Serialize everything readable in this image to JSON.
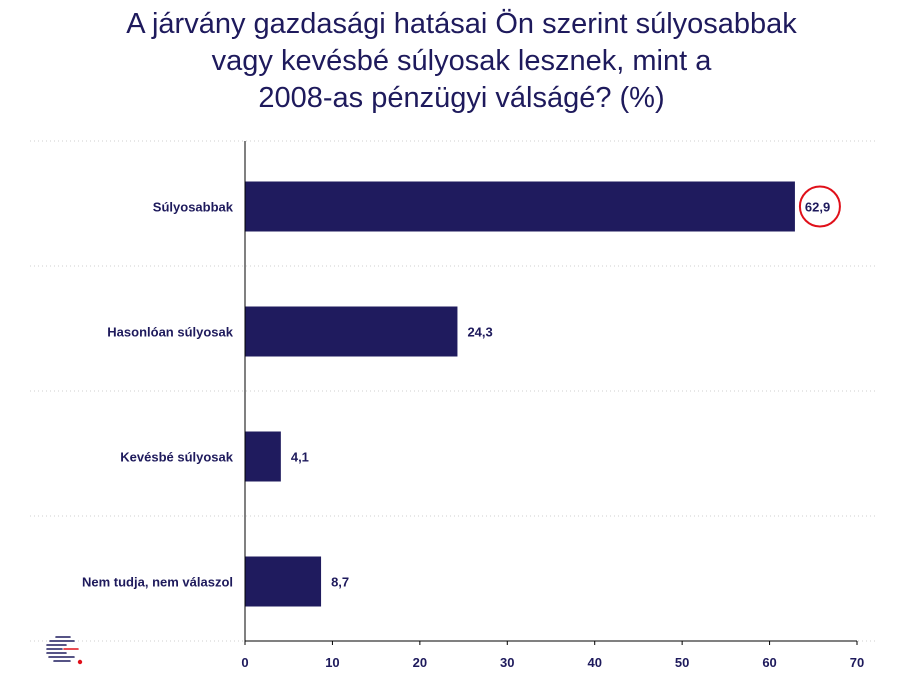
{
  "chart_data": {
    "type": "bar",
    "orientation": "horizontal",
    "title_lines": [
      "A járvány gazdasági hatásai Ön szerint súlyosabbak",
      "vagy kevésbé súlyosak lesznek, mint a",
      "2008-as pénzügyi válságé?  (%)"
    ],
    "categories": [
      "Súlyosabbak",
      "Hasonlóan súlyosak",
      "Kevésbé súlyosak",
      "Nem tudja, nem válaszol"
    ],
    "values": [
      62.9,
      24.3,
      4.1,
      8.7
    ],
    "value_labels": [
      "62,9",
      "24,3",
      "4,1",
      "8,7"
    ],
    "highlighted_index": 0,
    "xlim": [
      0,
      70
    ],
    "xticks": [
      0,
      10,
      20,
      30,
      40,
      50,
      60,
      70
    ],
    "grid": "dotted horizontal",
    "colors": {
      "bar": "#1f1b5e",
      "title": "#1e1a5c",
      "highlight": "#e0101a"
    }
  }
}
